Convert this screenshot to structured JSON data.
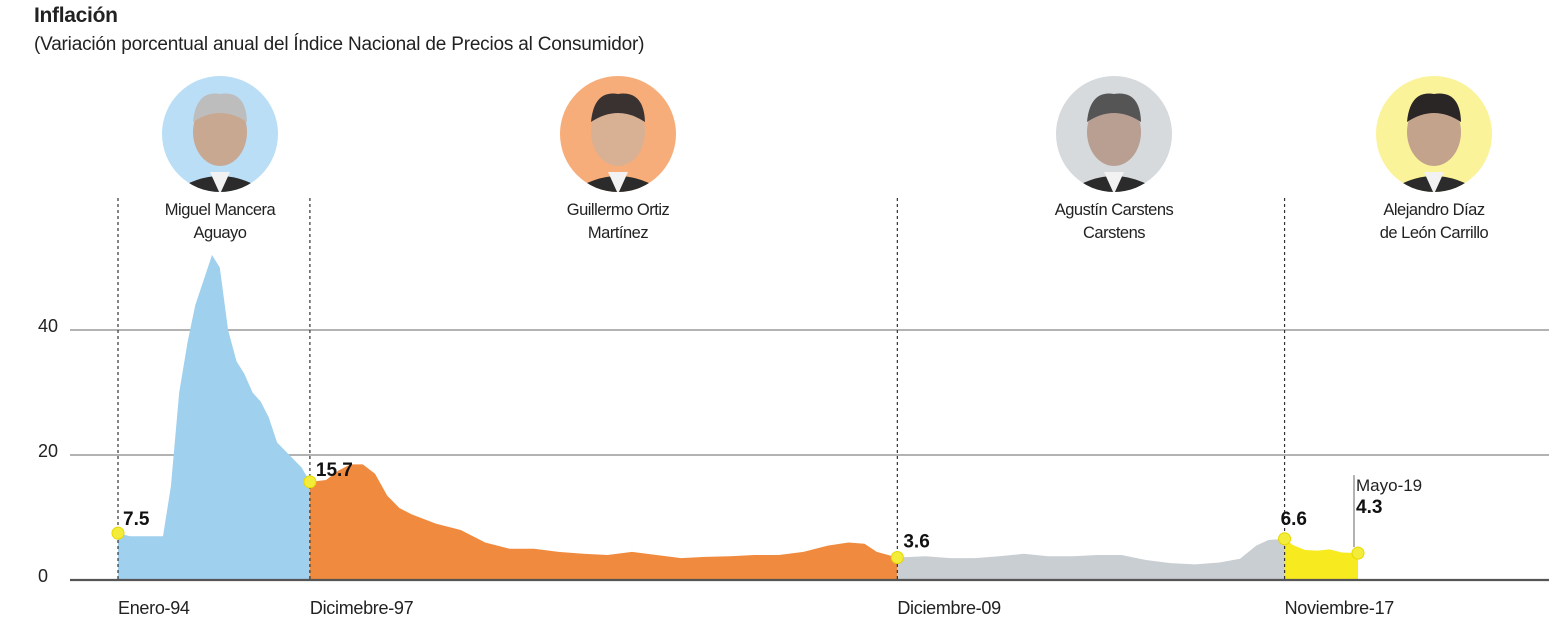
{
  "header": {
    "title": "Inflación",
    "subtitle": "(Variación porcentual anual del Índice Nacional de Precios al Consumidor)"
  },
  "colors": {
    "mancera": "#9fd0ee",
    "ortiz": "#f08a3e",
    "carstens": "#c9ced2",
    "diaz": "#f7ea1f",
    "marker": "#f3ec3a",
    "avatar_mancera_bg": "#b9def6",
    "avatar_ortiz_bg": "#f7ad7a",
    "avatar_carstens_bg": "#d6dadd",
    "avatar_diaz_bg": "#fbf39a"
  },
  "governors": [
    {
      "name_line1": "Miguel Mancera",
      "name_line2": "Aguayo",
      "avatar_icon": "person-portrait-icon"
    },
    {
      "name_line1": "Guillermo Ortiz",
      "name_line2": "Martínez",
      "avatar_icon": "person-portrait-icon"
    },
    {
      "name_line1": "Agustín Carstens",
      "name_line2": "Carstens",
      "avatar_icon": "person-portrait-icon"
    },
    {
      "name_line1": "Alejandro Díaz",
      "name_line2": "de León Carrillo",
      "avatar_icon": "person-portrait-icon"
    }
  ],
  "chart_data": {
    "type": "area",
    "title": "Inflación",
    "subtitle": "(Variación porcentual anual del Índice Nacional de Precios al Consumidor)",
    "xlabel": "",
    "ylabel": "",
    "ylim": [
      0,
      52
    ],
    "xlim": [
      1994.0,
      2019.33
    ],
    "y_ticks": [
      0,
      20,
      40
    ],
    "y_tick_labels": [
      "0",
      "20",
      "40"
    ],
    "grid": true,
    "legend": "none",
    "x_labels": [
      {
        "x": 1994.0,
        "text": "Enero-94"
      },
      {
        "x": 1997.92,
        "text": "Dicimebre-97"
      },
      {
        "x": 2009.92,
        "text": "Diciembre-09"
      },
      {
        "x": 2017.83,
        "text": "Noviembre-17"
      }
    ],
    "annotations": [
      {
        "x": 1994.0,
        "y": 7.5,
        "text": "7.5"
      },
      {
        "x": 1997.92,
        "y": 15.7,
        "text": "15.7"
      },
      {
        "x": 2009.92,
        "y": 3.6,
        "text": "3.6"
      },
      {
        "x": 2017.83,
        "y": 6.6,
        "text": "6.6"
      },
      {
        "x": 2019.33,
        "y": 4.3,
        "text": "4.3",
        "label": "Mayo-19"
      }
    ],
    "series": [
      {
        "name": "Miguel Mancera Aguayo",
        "x": [
          1994.0,
          1994.25,
          1994.5,
          1994.75,
          1994.92,
          1995.08,
          1995.25,
          1995.42,
          1995.58,
          1995.75,
          1995.92,
          1996.08,
          1996.25,
          1996.42,
          1996.58,
          1996.75,
          1996.92,
          1997.08,
          1997.25,
          1997.5,
          1997.75,
          1997.92
        ],
        "values": [
          7.5,
          7.0,
          7.0,
          7.0,
          7.0,
          15.0,
          30.0,
          38.0,
          44.0,
          48.0,
          52.0,
          50.0,
          40.0,
          35.0,
          33.0,
          30.0,
          28.5,
          26.0,
          22.0,
          20.0,
          18.0,
          15.7
        ]
      },
      {
        "name": "Guillermo Ortiz Martínez",
        "x": [
          1997.92,
          1998.25,
          1998.5,
          1998.75,
          1999.0,
          1999.25,
          1999.5,
          1999.75,
          2000.0,
          2000.5,
          2001.0,
          2001.5,
          2002.0,
          2002.5,
          2003.0,
          2003.5,
          2004.0,
          2004.5,
          2005.0,
          2005.5,
          2006.0,
          2006.5,
          2007.0,
          2007.5,
          2008.0,
          2008.5,
          2008.92,
          2009.25,
          2009.5,
          2009.92
        ],
        "values": [
          15.7,
          16.0,
          17.5,
          18.5,
          18.5,
          17.0,
          13.5,
          11.5,
          10.5,
          9.0,
          8.0,
          6.0,
          5.0,
          5.0,
          4.5,
          4.2,
          4.0,
          4.5,
          4.0,
          3.5,
          3.7,
          3.8,
          4.0,
          4.0,
          4.5,
          5.5,
          6.0,
          5.8,
          4.5,
          3.6
        ]
      },
      {
        "name": "Agustín Carstens Carstens",
        "x": [
          2009.92,
          2010.5,
          2011.0,
          2011.5,
          2012.0,
          2012.5,
          2013.0,
          2013.5,
          2014.0,
          2014.5,
          2015.0,
          2015.5,
          2016.0,
          2016.5,
          2016.92,
          2017.25,
          2017.5,
          2017.83
        ],
        "values": [
          3.6,
          3.8,
          3.5,
          3.5,
          3.8,
          4.2,
          3.8,
          3.8,
          4.0,
          4.0,
          3.2,
          2.7,
          2.5,
          2.8,
          3.4,
          5.5,
          6.4,
          6.6
        ]
      },
      {
        "name": "Alejandro Díaz de León Carrillo",
        "x": [
          2017.83,
          2018.0,
          2018.25,
          2018.5,
          2018.75,
          2019.0,
          2019.33
        ],
        "values": [
          6.6,
          5.6,
          4.8,
          4.7,
          4.9,
          4.4,
          4.3
        ]
      }
    ]
  }
}
